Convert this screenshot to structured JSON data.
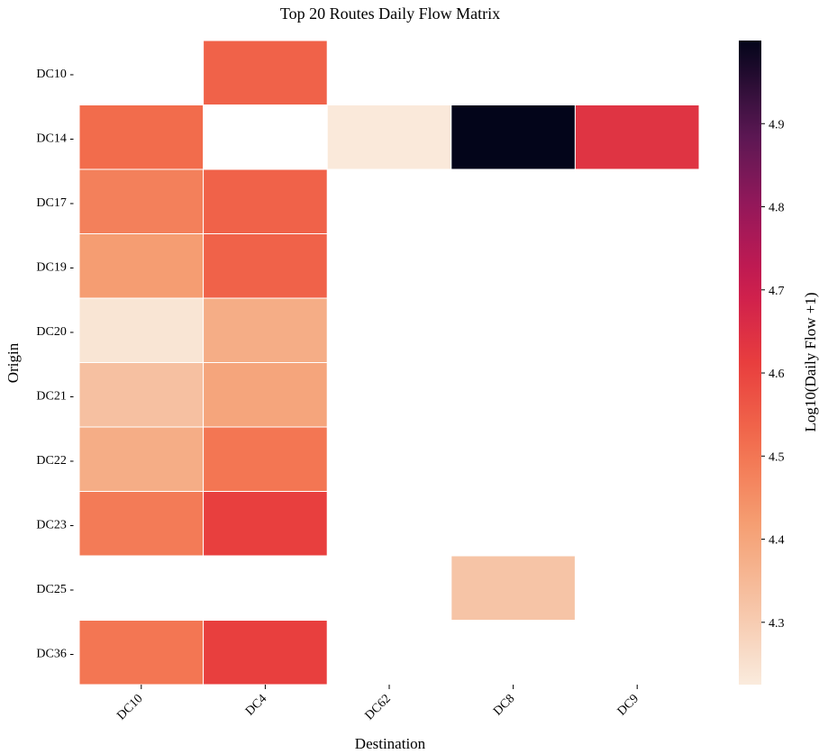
{
  "chart_data": {
    "type": "heatmap",
    "title": "Top 20 Routes Daily Flow Matrix",
    "xlabel": "Destination",
    "ylabel": "Origin",
    "x_categories": [
      "DC10",
      "DC4",
      "DC62",
      "DC8",
      "DC9"
    ],
    "y_categories": [
      "DC10",
      "DC14",
      "DC17",
      "DC19",
      "DC20",
      "DC21",
      "DC22",
      "DC23",
      "DC25",
      "DC36"
    ],
    "values": [
      [
        null,
        4.54,
        null,
        null,
        null
      ],
      [
        4.52,
        null,
        4.23,
        5.0,
        4.64
      ],
      [
        4.48,
        4.54,
        null,
        null,
        null
      ],
      [
        4.42,
        4.54,
        null,
        null,
        null
      ],
      [
        4.24,
        4.38,
        null,
        null,
        null
      ],
      [
        4.33,
        4.4,
        null,
        null,
        null
      ],
      [
        4.38,
        4.5,
        null,
        null,
        null
      ],
      [
        4.49,
        4.61,
        null,
        null,
        null
      ],
      [
        null,
        null,
        null,
        4.32,
        null
      ],
      [
        4.5,
        4.61,
        null,
        null,
        null
      ]
    ],
    "colorbar": {
      "label": "Log10(Daily Flow +1)",
      "vmin": 4.225,
      "vmax": 5.0,
      "ticks": [
        4.3,
        4.4,
        4.5,
        4.6,
        4.7,
        4.8,
        4.9
      ],
      "colormap": "rocket_r"
    }
  }
}
